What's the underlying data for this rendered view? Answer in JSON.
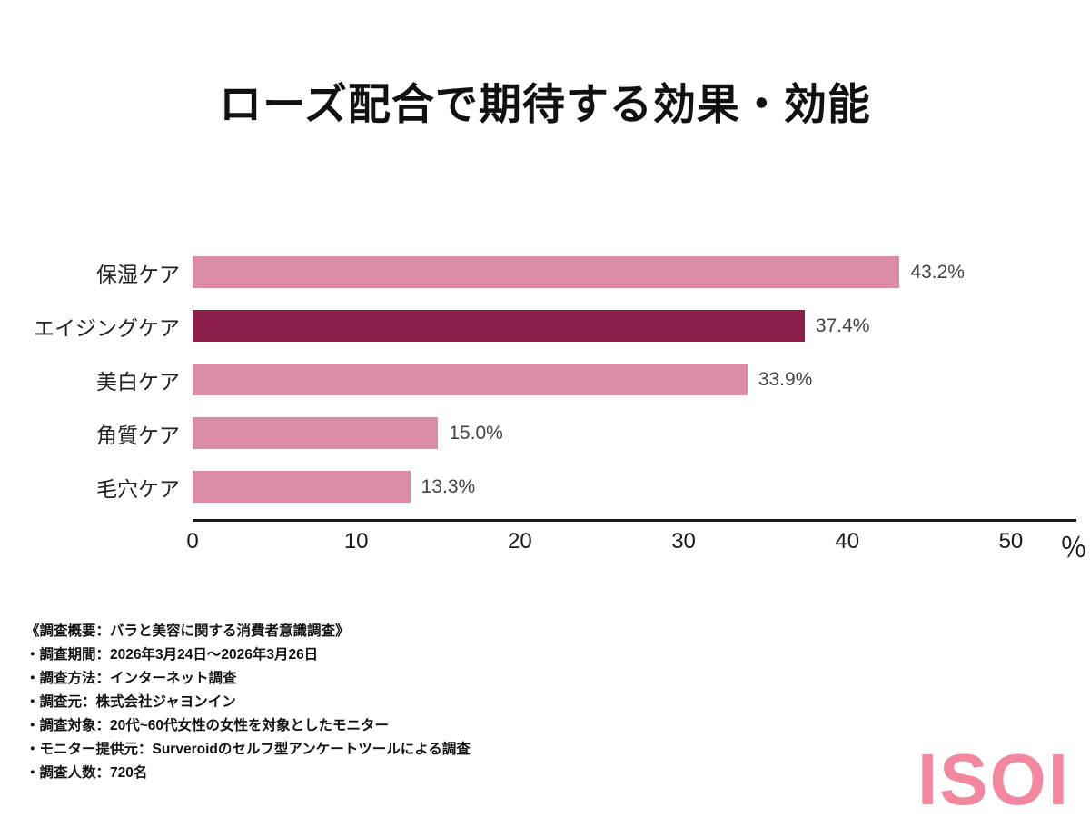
{
  "title": "ローズ配合で期待する効果・効能",
  "chart_data": {
    "type": "bar",
    "orientation": "horizontal",
    "title": "ローズ配合で期待する効果・効能",
    "categories": [
      "保湿ケア",
      "エイジングケア",
      "美白ケア",
      "角質ケア",
      "毛穴ケア"
    ],
    "values": [
      43.2,
      37.4,
      33.9,
      15.0,
      13.3
    ],
    "value_labels": [
      "43.2%",
      "37.4%",
      "33.9%",
      "15.0%",
      "13.3%"
    ],
    "xlim": [
      0,
      54
    ],
    "ticks": [
      0,
      10,
      20,
      30,
      40,
      50
    ],
    "x_unit": "％",
    "xlabel": "",
    "ylabel": "",
    "grid": false,
    "legend": false,
    "highlight_index": 1,
    "bar_color": "#d98ca4",
    "highlight_color": "#8b1e4b"
  },
  "footer": {
    "lines": [
      "《調査概要：バラと美容に関する消費者意識調査》",
      "・調査期間：2026年3月24日〜2026年3月26日",
      "・調査方法：インターネット調査",
      "・調査元：株式会社ジャヨンイン",
      "・調査対象：20代~60代女性の女性を対象としたモニター",
      "・モニター提供元：Surveroidのセルフ型アンケートツールによる調査",
      "・調査人数：720名"
    ]
  },
  "logo": {
    "text": "ISOI",
    "color": "#f2879f"
  }
}
